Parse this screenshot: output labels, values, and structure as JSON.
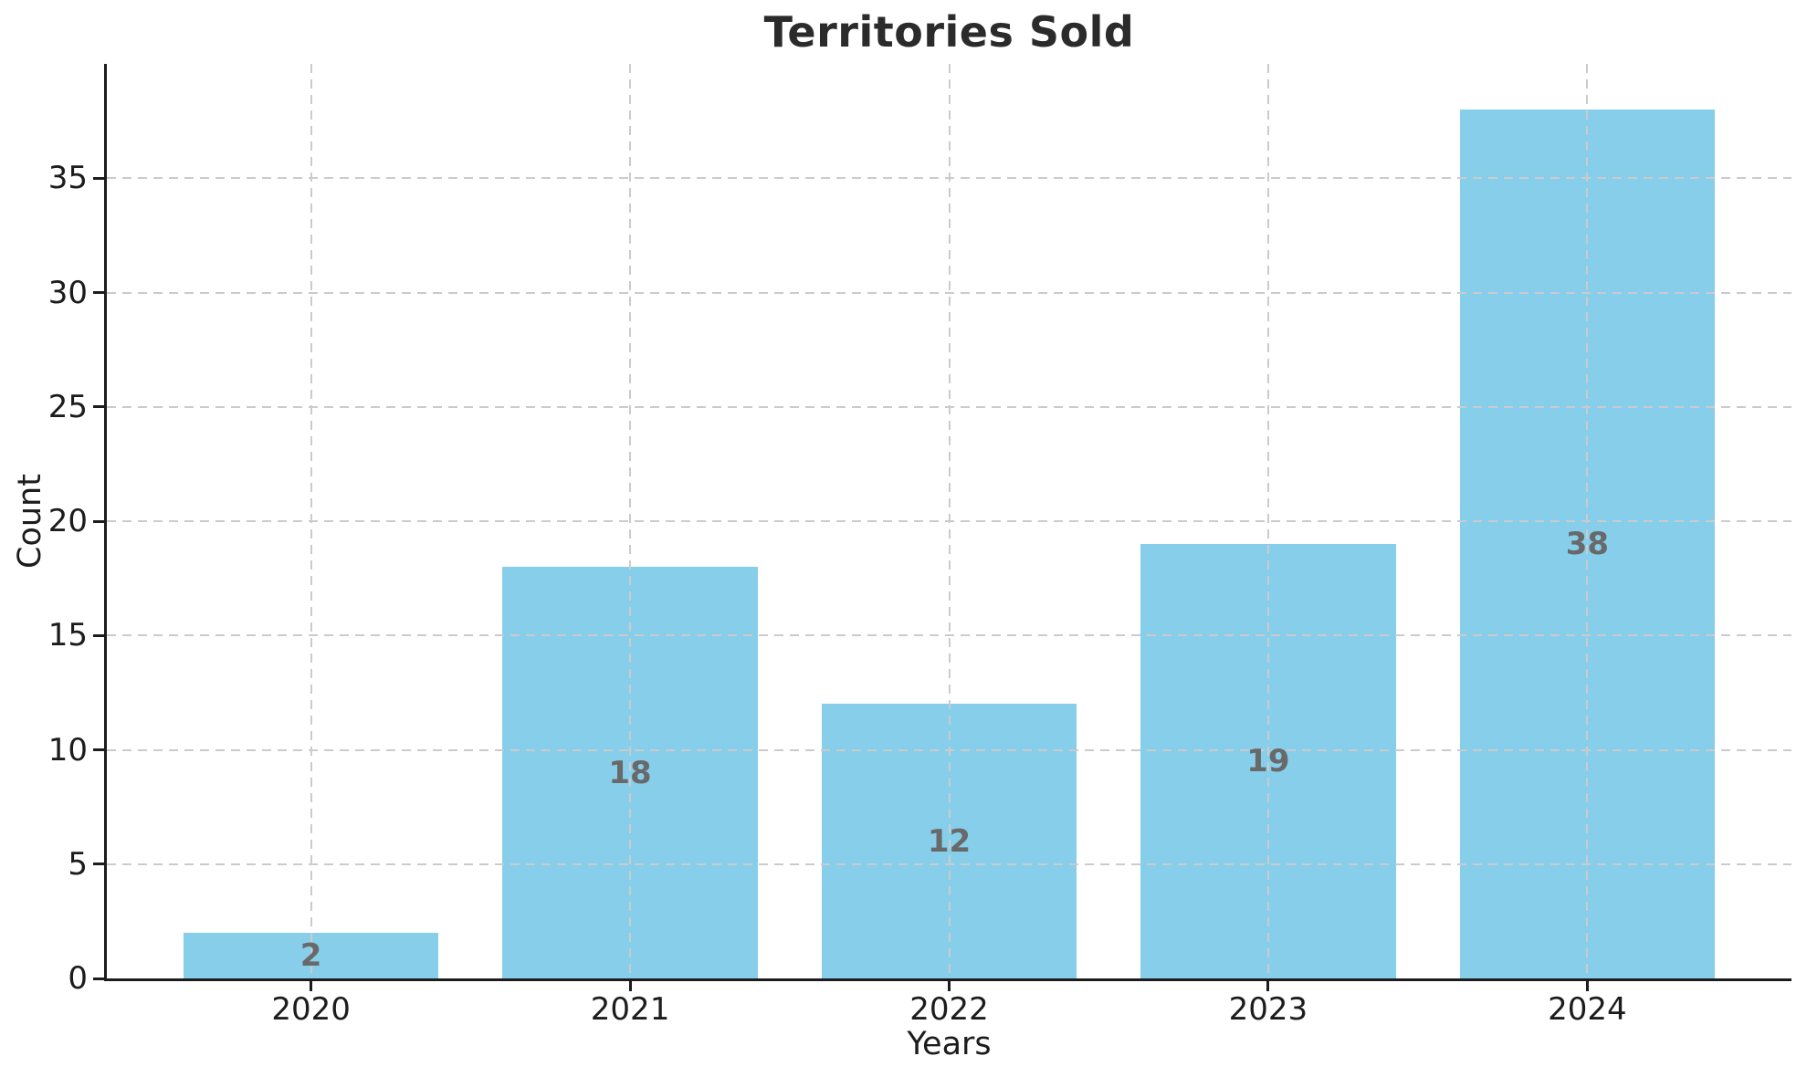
{
  "chart_data": {
    "type": "bar",
    "title": "Territories Sold",
    "xlabel": "Years",
    "ylabel": "Count",
    "categories": [
      "2020",
      "2021",
      "2022",
      "2023",
      "2024"
    ],
    "values": [
      2,
      18,
      12,
      19,
      38
    ],
    "yticks": [
      0,
      5,
      10,
      15,
      20,
      25,
      30,
      35
    ],
    "ylim": [
      0,
      40
    ],
    "bar_color": "#87CEEB",
    "value_label_color": "#696969",
    "grid": "dashed, both axes, drawn over bars",
    "grid_color": "#cbcbcb",
    "axis_color": "#1c1c1c",
    "legend": "none"
  }
}
